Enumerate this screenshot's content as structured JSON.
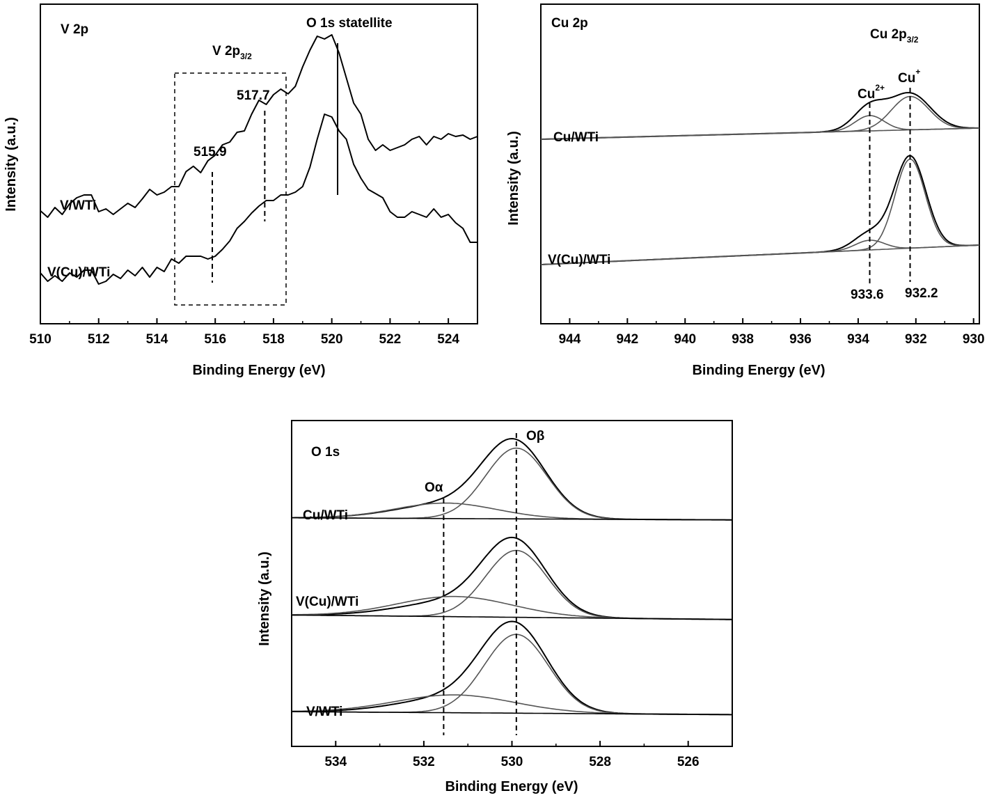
{
  "chart_data": [
    {
      "type": "line",
      "panel_label": "V 2p",
      "xlabel": "Binding Energy (eV)",
      "ylabel": "Intensity (a.u.)",
      "xlim": [
        510,
        525
      ],
      "x_ticks": [
        510,
        512,
        514,
        516,
        518,
        520,
        522,
        524
      ],
      "x_reversed": false,
      "ylim": [
        0,
        1
      ],
      "series": [
        {
          "name": "V/WTi",
          "color": "#000000",
          "x": [
            510,
            510.25,
            510.5,
            510.75,
            511,
            511.25,
            511.5,
            511.75,
            512,
            512.25,
            512.5,
            512.75,
            513,
            513.25,
            513.5,
            513.75,
            514,
            514.25,
            514.5,
            514.75,
            515,
            515.25,
            515.5,
            515.75,
            516,
            516.25,
            516.5,
            516.75,
            517,
            517.25,
            517.5,
            517.75,
            518,
            518.25,
            518.5,
            518.75,
            519,
            519.25,
            519.5,
            519.75,
            520,
            520.25,
            520.5,
            520.75,
            521,
            521.25,
            521.5,
            521.75,
            522,
            522.25,
            522.5,
            522.75,
            523,
            523.25,
            523.5,
            523.75,
            524,
            524.25,
            524.5,
            524.75,
            525
          ],
          "y": [
            0.343,
            0.32,
            0.355,
            0.33,
            0.368,
            0.39,
            0.4,
            0.4,
            0.34,
            0.35,
            0.33,
            0.35,
            0.37,
            0.355,
            0.386,
            0.42,
            0.4,
            0.41,
            0.43,
            0.43,
            0.484,
            0.503,
            0.48,
            0.523,
            0.543,
            0.58,
            0.59,
            0.625,
            0.63,
            0.69,
            0.74,
            0.725,
            0.76,
            0.78,
            0.763,
            0.79,
            0.86,
            0.92,
            0.97,
            0.96,
            0.975,
            0.91,
            0.82,
            0.73,
            0.69,
            0.6,
            0.56,
            0.58,
            0.56,
            0.57,
            0.58,
            0.6,
            0.61,
            0.58,
            0.61,
            0.6,
            0.62,
            0.61,
            0.615,
            0.6,
            0.61
          ]
        },
        {
          "name": "V(Cu)/WTi",
          "color": "#000000",
          "x": [
            510,
            510.25,
            510.5,
            510.75,
            511,
            511.25,
            511.5,
            511.75,
            512,
            512.25,
            512.5,
            512.75,
            513,
            513.25,
            513.5,
            513.75,
            514,
            514.25,
            514.5,
            514.75,
            515,
            515.25,
            515.5,
            515.75,
            516,
            516.25,
            516.5,
            516.75,
            517,
            517.25,
            517.5,
            517.75,
            518,
            518.25,
            518.5,
            518.75,
            519,
            519.25,
            519.5,
            519.75,
            520,
            520.25,
            520.5,
            520.75,
            521,
            521.25,
            521.5,
            521.75,
            522,
            522.25,
            522.5,
            522.75,
            523,
            523.25,
            523.5,
            523.75,
            524,
            524.25,
            524.5,
            524.75,
            525
          ],
          "y": [
            0.12,
            0.09,
            0.11,
            0.09,
            0.12,
            0.105,
            0.13,
            0.13,
            0.08,
            0.09,
            0.115,
            0.1,
            0.13,
            0.11,
            0.14,
            0.105,
            0.14,
            0.125,
            0.17,
            0.155,
            0.18,
            0.18,
            0.18,
            0.17,
            0.18,
            0.205,
            0.235,
            0.28,
            0.305,
            0.335,
            0.36,
            0.38,
            0.38,
            0.4,
            0.4,
            0.41,
            0.43,
            0.5,
            0.6,
            0.69,
            0.68,
            0.63,
            0.6,
            0.51,
            0.46,
            0.42,
            0.405,
            0.39,
            0.34,
            0.32,
            0.32,
            0.34,
            0.33,
            0.32,
            0.35,
            0.32,
            0.33,
            0.3,
            0.28,
            0.23,
            0.23
          ]
        }
      ],
      "series_labels": [
        "V/WTi",
        "V(Cu)/WTi"
      ],
      "annotations": {
        "peak_a": "515.9",
        "peak_b": "517.7",
        "box_label_main": "V 2p",
        "box_label_sub": "3/2",
        "satellite": "O 1s statellite"
      },
      "marker_lines": [
        {
          "x": 515.9,
          "style": "dashed"
        },
        {
          "x": 517.7,
          "style": "dashed"
        },
        {
          "x": 520.2,
          "style": "solid"
        }
      ],
      "grid": false,
      "legend": "none"
    },
    {
      "type": "line",
      "panel_label": "Cu 2p",
      "xlabel": "Binding Energy (eV)",
      "ylabel": "Intensity (a.u.)",
      "xlim": [
        945,
        929.8
      ],
      "x_ticks": [
        944,
        942,
        940,
        938,
        936,
        934,
        932,
        930
      ],
      "x_reversed": true,
      "ylim": [
        0,
        1
      ],
      "series_labels": [
        "Cu/WTi",
        "V(Cu)/WTi"
      ],
      "series": [
        {
          "name": "Cu/WTi",
          "color": "#000000",
          "component": "envelope",
          "baseline": [
            0.6,
            0.64
          ],
          "peaks": [
            {
              "center": 933.6,
              "amp": 0.085,
              "width": 0.55
            },
            {
              "center": 932.2,
              "amp": 0.13,
              "width": 0.7
            }
          ]
        },
        {
          "name": "Cu/WTi",
          "color": "#555555",
          "component": "fit",
          "baseline": [
            0.6,
            0.64
          ],
          "peaks": [
            {
              "center": 933.6,
              "amp": 0.055,
              "width": 0.5
            }
          ]
        },
        {
          "name": "Cu/WTi",
          "color": "#555555",
          "component": "fit",
          "baseline": [
            0.6,
            0.64
          ],
          "peaks": [
            {
              "center": 932.2,
              "amp": 0.12,
              "width": 0.65
            }
          ]
        },
        {
          "name": "V(Cu)/WTi",
          "color": "#000000",
          "component": "envelope",
          "baseline": [
            0.15,
            0.22
          ],
          "peaks": [
            {
              "center": 933.6,
              "amp": 0.06,
              "width": 0.55
            },
            {
              "center": 932.2,
              "amp": 0.33,
              "width": 0.55
            }
          ]
        },
        {
          "name": "V(Cu)/WTi",
          "color": "#555555",
          "component": "fit",
          "baseline": [
            0.15,
            0.22
          ],
          "peaks": [
            {
              "center": 933.6,
              "amp": 0.035,
              "width": 0.5
            }
          ]
        },
        {
          "name": "V(Cu)/WTi",
          "color": "#555555",
          "component": "fit",
          "baseline": [
            0.15,
            0.22
          ],
          "peaks": [
            {
              "center": 932.2,
              "amp": 0.32,
              "width": 0.52
            }
          ]
        },
        {
          "name": "Cu/WTi",
          "color": "#555555",
          "component": "baseline",
          "baseline": [
            0.6,
            0.64
          ],
          "peaks": []
        },
        {
          "name": "V(Cu)/WTi",
          "color": "#555555",
          "component": "baseline",
          "baseline": [
            0.15,
            0.22
          ],
          "peaks": []
        }
      ],
      "annotations": {
        "region_main": "Cu 2p",
        "region_sub": "3/2",
        "cu2_main": "Cu",
        "cu2_sup": "2+",
        "cu1_main": "Cu",
        "cu1_sup": "+",
        "value_a": "933.6",
        "value_b": "932.2"
      },
      "marker_lines": [
        {
          "x": 933.6,
          "style": "dashed"
        },
        {
          "x": 932.2,
          "style": "dashed"
        }
      ],
      "grid": false,
      "legend": "none"
    },
    {
      "type": "line",
      "panel_label": "O 1s",
      "xlabel": "Binding Energy (eV)",
      "ylabel": "Intensity (a.u.)",
      "xlim": [
        535,
        525
      ],
      "x_ticks": [
        534,
        532,
        530,
        528,
        526
      ],
      "x_reversed": true,
      "ylim": [
        0,
        1
      ],
      "series_labels": [
        "Cu/WTi",
        "V(Cu)/WTi",
        "V/WTi"
      ],
      "series": [
        {
          "name": "Cu/WTi",
          "color": "#000000",
          "component": "envelope",
          "baseline": [
            0.722,
            0.715
          ],
          "peaks": [
            {
              "center": 529.95,
              "amp": 0.245,
              "width": 0.72
            },
            {
              "center": 531.4,
              "amp": 0.05,
              "width": 1.2
            }
          ]
        },
        {
          "name": "Cu/WTi",
          "color": "#555555",
          "component": "fit",
          "baseline": [
            0.722,
            0.715
          ],
          "peaks": [
            {
              "center": 529.9,
              "amp": 0.238,
              "width": 0.7
            }
          ]
        },
        {
          "name": "Cu/WTi",
          "color": "#555555",
          "component": "fit",
          "baseline": [
            0.722,
            0.715
          ],
          "peaks": [
            {
              "center": 531.5,
              "amp": 0.052,
              "width": 1.15
            }
          ]
        },
        {
          "name": "Cu/WTi",
          "color": "#000000",
          "component": "baseline",
          "baseline": [
            0.722,
            0.715
          ],
          "peaks": []
        },
        {
          "name": "V(Cu)/WTi",
          "color": "#000000",
          "component": "envelope",
          "baseline": [
            0.395,
            0.38
          ],
          "peaks": [
            {
              "center": 529.95,
              "amp": 0.24,
              "width": 0.72
            },
            {
              "center": 531.3,
              "amp": 0.05,
              "width": 1.25
            }
          ]
        },
        {
          "name": "V(Cu)/WTi",
          "color": "#555555",
          "component": "fit",
          "baseline": [
            0.395,
            0.38
          ],
          "peaks": [
            {
              "center": 529.9,
              "amp": 0.225,
              "width": 0.7
            }
          ]
        },
        {
          "name": "V(Cu)/WTi",
          "color": "#555555",
          "component": "fit",
          "baseline": [
            0.395,
            0.38
          ],
          "peaks": [
            {
              "center": 531.3,
              "amp": 0.068,
              "width": 1.3
            }
          ]
        },
        {
          "name": "V(Cu)/WTi",
          "color": "#000000",
          "component": "baseline",
          "baseline": [
            0.395,
            0.38
          ],
          "peaks": []
        },
        {
          "name": "V/WTi",
          "color": "#000000",
          "component": "envelope",
          "baseline": [
            0.07,
            0.06
          ],
          "peaks": [
            {
              "center": 529.95,
              "amp": 0.28,
              "width": 0.75
            },
            {
              "center": 531.3,
              "amp": 0.05,
              "width": 1.25
            }
          ]
        },
        {
          "name": "V/WTi",
          "color": "#555555",
          "component": "fit",
          "baseline": [
            0.07,
            0.06
          ],
          "peaks": [
            {
              "center": 529.9,
              "amp": 0.265,
              "width": 0.73
            }
          ]
        },
        {
          "name": "V/WTi",
          "color": "#555555",
          "component": "fit",
          "baseline": [
            0.07,
            0.06
          ],
          "peaks": [
            {
              "center": 531.3,
              "amp": 0.06,
              "width": 1.35
            }
          ]
        },
        {
          "name": "V/WTi",
          "color": "#000000",
          "component": "baseline",
          "baseline": [
            0.07,
            0.06
          ],
          "peaks": []
        }
      ],
      "annotations": {
        "o_alpha": "Oα",
        "o_beta": "Oβ"
      },
      "marker_lines": [
        {
          "x": 531.55,
          "style": "dashed"
        },
        {
          "x": 529.9,
          "style": "dashed"
        }
      ],
      "grid": false,
      "legend": "none"
    }
  ]
}
